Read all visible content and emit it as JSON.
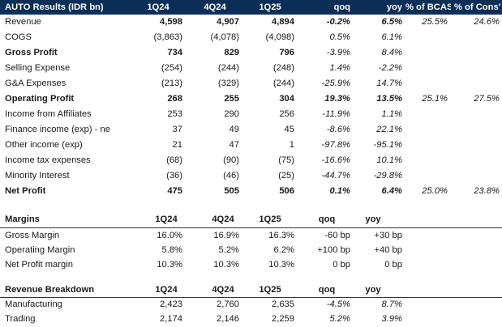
{
  "header": {
    "title": "AUTO Results (IDR bn)",
    "cols": [
      "1Q24",
      "4Q24",
      "1Q25",
      "qoq",
      "yoy",
      "% of BCAS",
      "% of Cons'"
    ]
  },
  "pnl": [
    {
      "label": "Revenue",
      "v1": "4,598",
      "v2": "4,907",
      "v3": "4,894",
      "qoq": "-0.2%",
      "yoy": "6.5%",
      "bcas": "25.5%",
      "cons": "24.6%"
    },
    {
      "label": "COGS",
      "v1": "(3,863)",
      "v2": "(4,078)",
      "v3": "(4,098)",
      "qoq": "0.5%",
      "yoy": "6.1%",
      "bcas": "",
      "cons": ""
    },
    {
      "label": "Gross Profit",
      "v1": "734",
      "v2": "829",
      "v3": "796",
      "qoq": "-3.9%",
      "yoy": "8.4%",
      "bcas": "",
      "cons": ""
    },
    {
      "label": "Selling Expense",
      "v1": "(254)",
      "v2": "(244)",
      "v3": "(248)",
      "qoq": "1.4%",
      "yoy": "-2.2%",
      "bcas": "",
      "cons": ""
    },
    {
      "label": "G&A Expenses",
      "v1": "(213)",
      "v2": "(329)",
      "v3": "(244)",
      "qoq": "-25.9%",
      "yoy": "14.7%",
      "bcas": "",
      "cons": ""
    },
    {
      "label": "Operating Profit",
      "v1": "268",
      "v2": "255",
      "v3": "304",
      "qoq": "19.3%",
      "yoy": "13.5%",
      "bcas": "25.1%",
      "cons": "27.5%"
    },
    {
      "label": "Income from Affiliates",
      "v1": "253",
      "v2": "290",
      "v3": "256",
      "qoq": "-11.9%",
      "yoy": "1.1%",
      "bcas": "",
      "cons": ""
    },
    {
      "label": "Finance income (exp) - ne",
      "v1": "37",
      "v2": "49",
      "v3": "45",
      "qoq": "-8.6%",
      "yoy": "22.1%",
      "bcas": "",
      "cons": ""
    },
    {
      "label": "Other income (exp)",
      "v1": "21",
      "v2": "47",
      "v3": "1",
      "qoq": "-97.8%",
      "yoy": "-95.1%",
      "bcas": "",
      "cons": ""
    },
    {
      "label": "Income tax expenses",
      "v1": "(68)",
      "v2": "(90)",
      "v3": "(75)",
      "qoq": "-16.6%",
      "yoy": "10.1%",
      "bcas": "",
      "cons": ""
    },
    {
      "label": "Minority Interest",
      "v1": "(36)",
      "v2": "(46)",
      "v3": "(25)",
      "qoq": "-44.7%",
      "yoy": "-29.8%",
      "bcas": "",
      "cons": ""
    },
    {
      "label": "Net Profit",
      "v1": "475",
      "v2": "505",
      "v3": "506",
      "qoq": "0.1%",
      "yoy": "6.4%",
      "bcas": "25.0%",
      "cons": "23.8%"
    }
  ],
  "margins": {
    "header": {
      "label": "Margins",
      "c1": "1Q24",
      "c2": "4Q24",
      "c3": "1Q25",
      "c4": "qoq",
      "c5": "yoy"
    },
    "rows": [
      {
        "label": "Gross Margin",
        "v1": "16.0%",
        "v2": "16.9%",
        "v3": "16.3%",
        "qoq": "-60 bp",
        "yoy": "+30 bp"
      },
      {
        "label": "Operating Margin",
        "v1": "5.8%",
        "v2": "5.2%",
        "v3": "6.2%",
        "qoq": "+100 bp",
        "yoy": "+40 bp"
      },
      {
        "label": "Net Profit margin",
        "v1": "10.3%",
        "v2": "10.3%",
        "v3": "10.3%",
        "qoq": "0 bp",
        "yoy": "0 bp"
      }
    ]
  },
  "breakdown": {
    "header": {
      "label": "Revenue Breakdown",
      "c1": "1Q24",
      "c2": "4Q24",
      "c3": "1Q25",
      "c4": "qoq",
      "c5": "yoy"
    },
    "rows": [
      {
        "label": "Manufacturing",
        "v1": "2,423",
        "v2": "2,760",
        "v3": "2,635",
        "qoq": "-4.5%",
        "yoy": "8.7%"
      },
      {
        "label": "Trading",
        "v1": "2,174",
        "v2": "2,146",
        "v3": "2,259",
        "qoq": "5.2%",
        "yoy": "3.9%"
      }
    ]
  }
}
